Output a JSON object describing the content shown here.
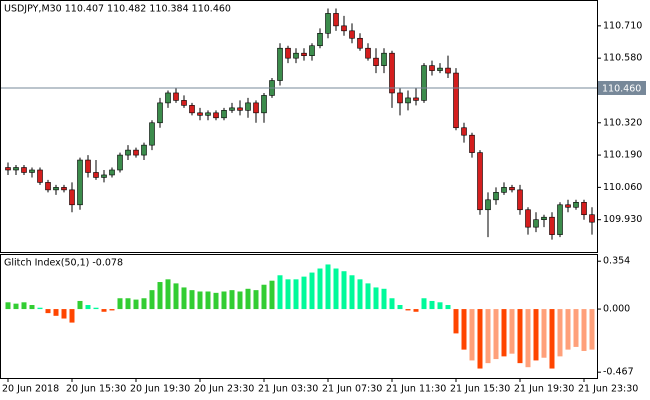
{
  "chart_data": [
    {
      "type": "candlestick",
      "title": "USDJPY,M30  110.407 110.482 110.384 110.460",
      "ylim": [
        109.8,
        110.81
      ],
      "yticks": [
        {
          "value": 109.93,
          "label": "109.930"
        },
        {
          "value": 110.06,
          "label": "110.060"
        },
        {
          "value": 110.19,
          "label": "110.190"
        },
        {
          "value": 110.32,
          "label": "110.320"
        },
        {
          "value": 110.58,
          "label": "110.580"
        },
        {
          "value": 110.71,
          "label": "110.710"
        }
      ],
      "hline": {
        "value": 110.46,
        "label": "110.460",
        "color": "#778899"
      },
      "up_color": "#3c8c4c",
      "down_color": "#d41e1e",
      "open": [
        110.14,
        110.13,
        110.14,
        110.12,
        110.13,
        110.08,
        110.05,
        110.06,
        110.05,
        109.99,
        110.17,
        110.12,
        110.1,
        110.11,
        110.13,
        110.19,
        110.21,
        110.19,
        110.23,
        110.32,
        110.4,
        110.44,
        110.41,
        110.39,
        110.36,
        110.35,
        110.36,
        110.34,
        110.37,
        110.38,
        110.37,
        110.4,
        110.36,
        110.43,
        110.49,
        110.62,
        110.58,
        110.6,
        110.59,
        110.63,
        110.68,
        110.76,
        110.71,
        110.69,
        110.66,
        110.62,
        110.58,
        110.55,
        110.6,
        110.44,
        110.4,
        110.42,
        110.41,
        110.55,
        110.53,
        110.54,
        110.52,
        110.3,
        110.27,
        110.2,
        109.97,
        110.01,
        110.04,
        110.06,
        110.05,
        109.97,
        109.9,
        109.93,
        109.94,
        109.87,
        109.99,
        109.98,
        110.0,
        109.95
      ],
      "high": [
        110.16,
        110.15,
        110.15,
        110.14,
        110.14,
        110.09,
        110.07,
        110.07,
        110.08,
        110.18,
        110.19,
        110.17,
        110.13,
        110.14,
        110.2,
        110.23,
        110.22,
        110.24,
        110.33,
        110.42,
        110.45,
        110.46,
        110.43,
        110.4,
        110.38,
        110.37,
        110.37,
        110.38,
        110.4,
        110.41,
        110.42,
        110.41,
        110.44,
        110.5,
        110.64,
        110.63,
        110.62,
        110.62,
        110.64,
        110.7,
        110.78,
        110.78,
        110.75,
        110.72,
        110.68,
        110.64,
        110.62,
        110.62,
        110.61,
        110.46,
        110.45,
        110.46,
        110.56,
        110.57,
        110.56,
        110.59,
        110.54,
        110.32,
        110.28,
        110.21,
        110.04,
        110.06,
        110.08,
        110.07,
        110.07,
        109.98,
        109.96,
        109.95,
        109.96,
        110.0,
        110.01,
        110.01,
        110.01,
        109.98
      ],
      "low": [
        110.11,
        110.11,
        110.11,
        110.1,
        110.07,
        110.04,
        110.03,
        110.04,
        109.96,
        109.97,
        110.1,
        110.09,
        110.08,
        110.1,
        110.12,
        110.17,
        110.18,
        110.17,
        110.21,
        110.3,
        110.38,
        110.4,
        110.38,
        110.35,
        110.33,
        110.33,
        110.33,
        110.33,
        110.36,
        110.35,
        110.34,
        110.32,
        110.32,
        110.42,
        110.47,
        110.56,
        110.56,
        110.57,
        110.57,
        110.62,
        110.66,
        110.69,
        110.67,
        110.64,
        110.61,
        110.57,
        110.52,
        110.52,
        110.38,
        110.35,
        110.37,
        110.39,
        110.4,
        110.51,
        110.52,
        110.5,
        110.29,
        110.24,
        110.18,
        109.95,
        109.86,
        109.99,
        110.03,
        110.04,
        109.95,
        109.87,
        109.88,
        109.9,
        109.85,
        109.86,
        109.96,
        109.97,
        109.93,
        109.87
      ],
      "close": [
        110.13,
        110.14,
        110.12,
        110.13,
        110.08,
        110.05,
        110.06,
        110.05,
        109.99,
        110.17,
        110.12,
        110.1,
        110.11,
        110.13,
        110.19,
        110.21,
        110.19,
        110.23,
        110.32,
        110.4,
        110.44,
        110.41,
        110.39,
        110.36,
        110.35,
        110.36,
        110.34,
        110.37,
        110.38,
        110.37,
        110.4,
        110.36,
        110.43,
        110.49,
        110.62,
        110.58,
        110.6,
        110.59,
        110.63,
        110.68,
        110.76,
        110.71,
        110.69,
        110.66,
        110.62,
        110.58,
        110.55,
        110.6,
        110.44,
        110.4,
        110.42,
        110.41,
        110.55,
        110.53,
        110.54,
        110.52,
        110.3,
        110.27,
        110.2,
        109.97,
        110.01,
        110.04,
        110.06,
        110.05,
        109.97,
        109.9,
        109.93,
        109.94,
        109.87,
        109.99,
        109.98,
        110.0,
        109.95,
        109.92
      ]
    },
    {
      "type": "histogram",
      "title": "Glitch Index(50,1) -0.078",
      "ylim": [
        -0.51,
        0.4
      ],
      "yticks": [
        -0.467,
        {
          "value": 0,
          "label": "0.000"
        },
        0.354
      ],
      "categories": [
        "20 Jun 2018",
        null,
        null,
        null,
        null,
        null,
        null,
        null,
        "20 Jun 15:30",
        null,
        null,
        null,
        null,
        null,
        null,
        null,
        "20 Jun 19:30",
        null,
        null,
        null,
        null,
        null,
        null,
        null,
        "20 Jun 23:30",
        null,
        null,
        null,
        null,
        null,
        null,
        null,
        "21 Jun 03:30",
        null,
        null,
        null,
        null,
        null,
        null,
        null,
        "21 Jun 07:30",
        null,
        null,
        null,
        null,
        null,
        null,
        null,
        "21 Jun 11:30",
        null,
        null,
        null,
        null,
        null,
        null,
        null,
        "21 Jun 15:30",
        null,
        null,
        null,
        null,
        null,
        null,
        null,
        "21 Jun 19:30",
        null,
        null,
        null,
        null,
        null,
        null,
        null,
        "21 Jun 23:30",
        null
      ],
      "values": [
        0.05,
        0.04,
        0.05,
        0.03,
        0.01,
        -0.03,
        -0.05,
        -0.07,
        -0.1,
        0.06,
        0.03,
        0.01,
        -0.02,
        -0.01,
        0.08,
        0.08,
        0.07,
        0.08,
        0.14,
        0.2,
        0.22,
        0.19,
        0.16,
        0.14,
        0.13,
        0.13,
        0.12,
        0.13,
        0.14,
        0.13,
        0.15,
        0.14,
        0.18,
        0.21,
        0.25,
        0.22,
        0.22,
        0.24,
        0.27,
        0.3,
        0.33,
        0.3,
        0.28,
        0.25,
        0.22,
        0.19,
        0.16,
        0.15,
        0.08,
        0.03,
        -0.01,
        -0.02,
        0.08,
        0.06,
        0.05,
        0.03,
        -0.18,
        -0.3,
        -0.38,
        -0.44,
        -0.4,
        -0.37,
        -0.35,
        -0.33,
        -0.4,
        -0.43,
        -0.38,
        -0.36,
        -0.44,
        -0.35,
        -0.3,
        -0.28,
        -0.31,
        -0.3
      ],
      "colors": [
        "#32cd32",
        "#32cd32",
        "#32cd32",
        "#32cd32",
        "#00fa9a",
        "#ff4500",
        "#ff4500",
        "#ff4500",
        "#ff4500",
        "#32cd32",
        "#00fa9a",
        "#00fa9a",
        "#ff4500",
        "#ff4500",
        "#32cd32",
        "#32cd32",
        "#32cd32",
        "#32cd32",
        "#32cd32",
        "#32cd32",
        "#32cd32",
        "#32cd32",
        "#32cd32",
        "#32cd32",
        "#32cd32",
        "#32cd32",
        "#32cd32",
        "#32cd32",
        "#32cd32",
        "#32cd32",
        "#32cd32",
        "#32cd32",
        "#32cd32",
        "#32cd32",
        "#00fa9a",
        "#00fa9a",
        "#00fa9a",
        "#00fa9a",
        "#00fa9a",
        "#00fa9a",
        "#00fa9a",
        "#00fa9a",
        "#00fa9a",
        "#00fa9a",
        "#00fa9a",
        "#00fa9a",
        "#00fa9a",
        "#00fa9a",
        "#00fa9a",
        "#00fa9a",
        "#ff4500",
        "#ff4500",
        "#00fa9a",
        "#00fa9a",
        "#00fa9a",
        "#00fa9a",
        "#ff4500",
        "#ff4500",
        "#ffa07a",
        "#ff4500",
        "#ffa07a",
        "#ffa07a",
        "#ff4500",
        "#ffa07a",
        "#ff4500",
        "#ffa07a",
        "#ff4500",
        "#ffa07a",
        "#ff4500",
        "#ffa07a",
        "#ffa07a",
        "#ffa07a",
        "#ffa07a",
        "#ffa07a"
      ]
    }
  ]
}
